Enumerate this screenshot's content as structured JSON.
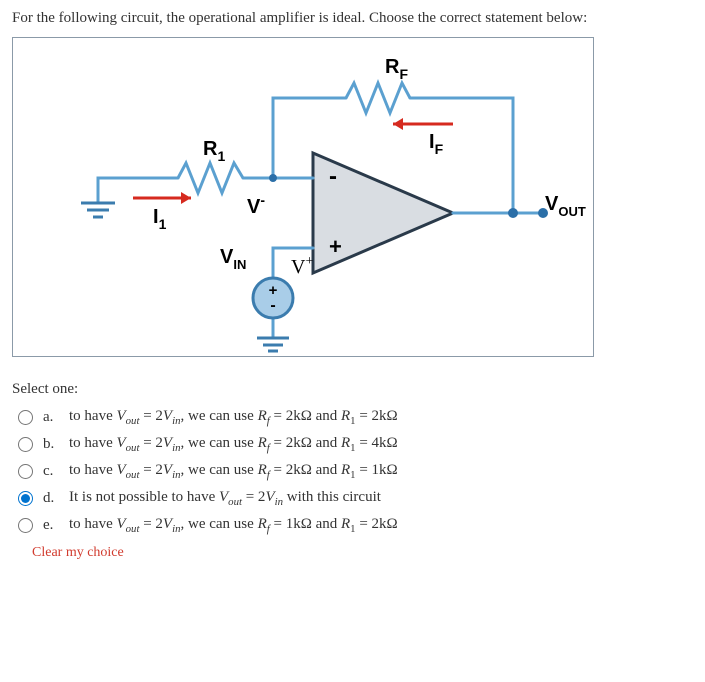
{
  "question": "For the following circuit, the operational amplifier is ideal. Choose the correct statement below:",
  "circuit": {
    "labels": {
      "RF": "R",
      "RF_sub": "F",
      "IF": "I",
      "IF_sub": "F",
      "R1": "R",
      "R1_sub": "1",
      "I1": "I",
      "I1_sub": "1",
      "Vminus": "V",
      "Vminus_sup": "-",
      "Vplus": "V",
      "Vplus_sup": "+",
      "VIN": "V",
      "VIN_sub": "IN",
      "VOUT": "V",
      "VOUT_sub": "OUT",
      "opamp_plus": "+",
      "opamp_minus": "-",
      "src_plus": "+",
      "src_minus": "-"
    },
    "colors": {
      "wire": "#5ba0d0",
      "wire_dark": "#3b7cae",
      "resistor": "#5ba0d0",
      "arrow_red": "#d62a1f",
      "opamp_fill": "#d9dde2",
      "opamp_stroke": "#2a3a4a",
      "node": "#2b6fa8",
      "src_stroke": "#3b7cae",
      "src_fill": "#a9cde8",
      "text": "#000000",
      "ground": "#3b7cae"
    },
    "stroke_width": 3
  },
  "prompt": "Select one:",
  "options": [
    {
      "letter": "a.",
      "text_html": "to have <span class='ital'>V<sub>out</sub></span> = 2<span class='ital'>V<sub>in</sub></span>, we can use <span class='ital'>R<sub>f</sub></span> = 2kΩ and <span class='ital'>R</span><sub>1</sub> = 2kΩ",
      "selected": false
    },
    {
      "letter": "b.",
      "text_html": "to have <span class='ital'>V<sub>out</sub></span> = 2<span class='ital'>V<sub>in</sub></span>, we can use <span class='ital'>R<sub>f</sub></span> = 2kΩ and <span class='ital'>R</span><sub>1</sub> = 4kΩ",
      "selected": false
    },
    {
      "letter": "c.",
      "text_html": "to have <span class='ital'>V<sub>out</sub></span> = 2<span class='ital'>V<sub>in</sub></span>, we can use <span class='ital'>R<sub>f</sub></span> = 2kΩ and <span class='ital'>R</span><sub>1</sub> = 1kΩ",
      "selected": false
    },
    {
      "letter": "d.",
      "text_html": "It is not possible to have <span class='ital'>V<sub>out</sub></span> = 2<span class='ital'>V<sub>in</sub></span> with this circuit",
      "selected": true
    },
    {
      "letter": "e.",
      "text_html": "to have <span class='ital'>V<sub>out</sub></span> = 2<span class='ital'>V<sub>in</sub></span>, we can use <span class='ital'>R<sub>f</sub></span> = 1kΩ and <span class='ital'>R</span><sub>1</sub> = 2kΩ",
      "selected": false
    }
  ],
  "clear": "Clear my choice"
}
